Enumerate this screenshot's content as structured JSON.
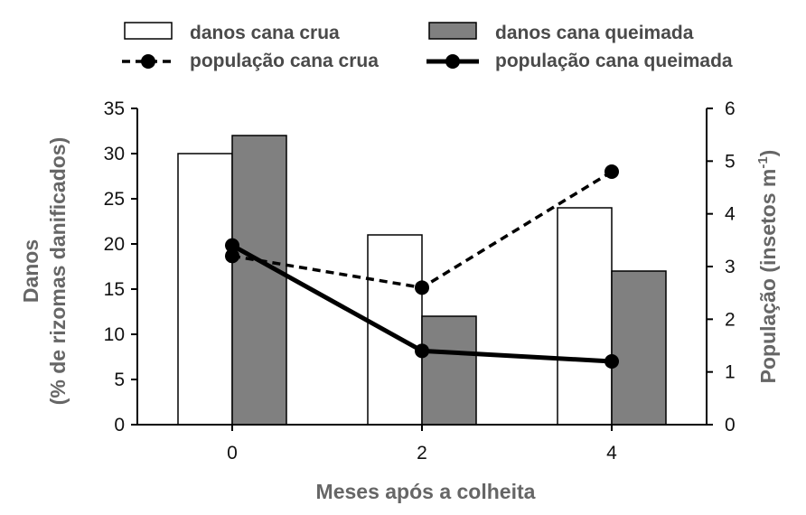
{
  "chart_data": {
    "type": "bar",
    "title": "",
    "xlabel": "Meses após a colheita",
    "ylabel_left": [
      "Danos",
      "(% de rizomas danificados)"
    ],
    "ylabel_right": {
      "main": "População (insetos m",
      "sup": "-1",
      "end": ")"
    },
    "categories": [
      "0",
      "2",
      "4"
    ],
    "ylim_left": [
      0,
      35
    ],
    "ylim_right": [
      0,
      6
    ],
    "yticks_left": [
      "0",
      "5",
      "10",
      "15",
      "20",
      "25",
      "30",
      "35"
    ],
    "yticks_right": [
      "0",
      "1",
      "2",
      "3",
      "4",
      "5",
      "6"
    ],
    "grid": false,
    "legend_position": "top",
    "bar_series": [
      {
        "name": "danos cana crua",
        "values": [
          30,
          21,
          24
        ],
        "color": "#ffffff"
      },
      {
        "name": "danos cana queimada",
        "values": [
          32,
          12,
          17
        ],
        "color": "#808080"
      }
    ],
    "line_series": [
      {
        "name": "população cana crua",
        "values": [
          3.2,
          2.6,
          4.8
        ],
        "style": "dashed",
        "color": "#000000"
      },
      {
        "name": "população cana queimada",
        "values": [
          3.4,
          1.4,
          1.2
        ],
        "style": "solid",
        "color": "#000000"
      }
    ]
  }
}
